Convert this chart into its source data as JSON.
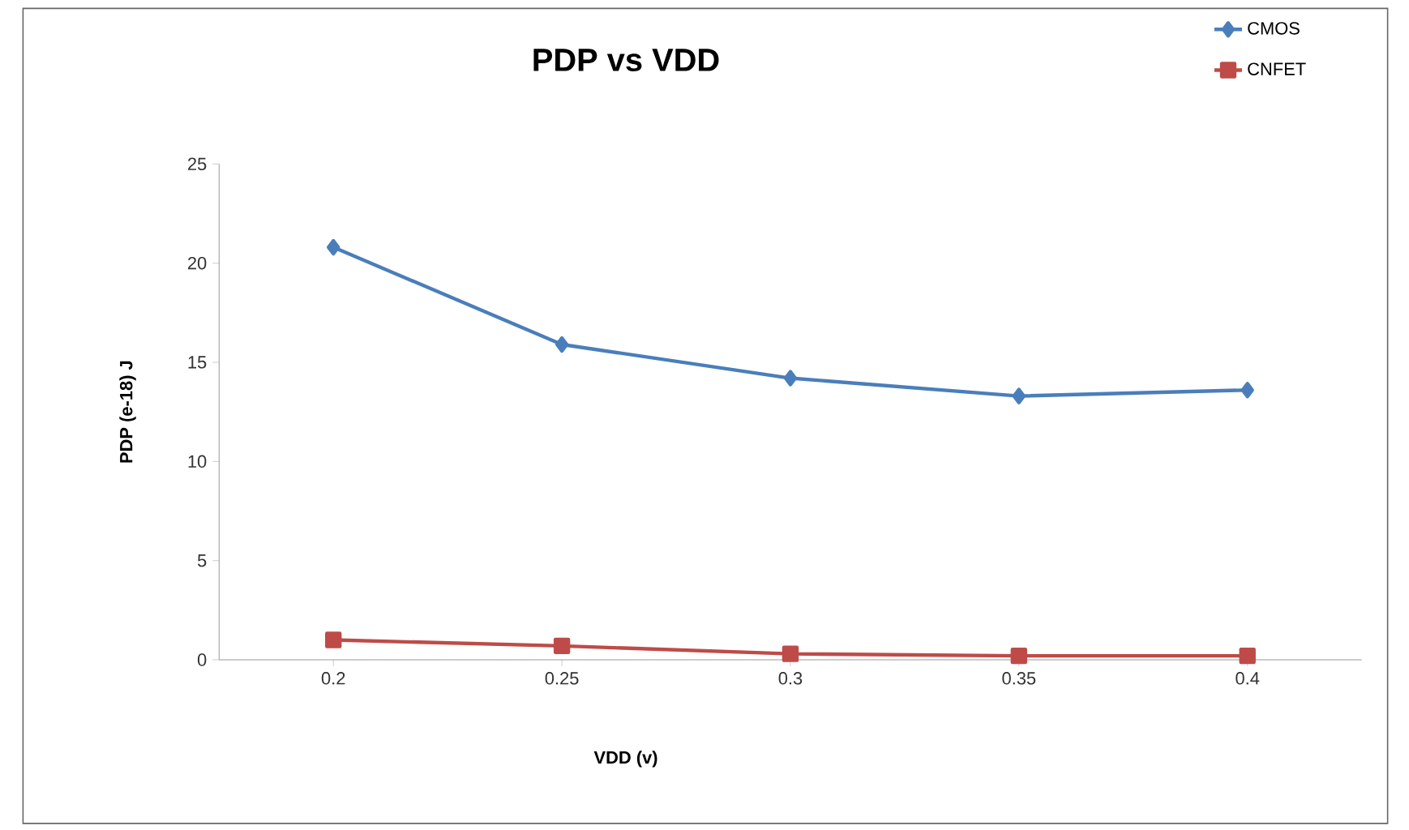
{
  "chart_data": {
    "type": "line",
    "title": "PDP vs VDD",
    "xlabel": "VDD (v)",
    "ylabel": "PDP (e-18) J",
    "categories": [
      "0.2",
      "0.25",
      "0.3",
      "0.35",
      "0.4"
    ],
    "series": [
      {
        "name": "CMOS",
        "color": "#4a7ebb",
        "marker": "diamond",
        "values": [
          20.8,
          15.9,
          14.2,
          13.3,
          13.6
        ]
      },
      {
        "name": "CNFET",
        "color": "#be4b48",
        "marker": "square",
        "values": [
          1.0,
          0.7,
          0.3,
          0.2,
          0.2
        ]
      }
    ],
    "ylim": [
      0,
      25
    ],
    "yticks": [
      0,
      5,
      10,
      15,
      20,
      25
    ],
    "grid": false,
    "legend": "top right",
    "line_style": "solid"
  }
}
